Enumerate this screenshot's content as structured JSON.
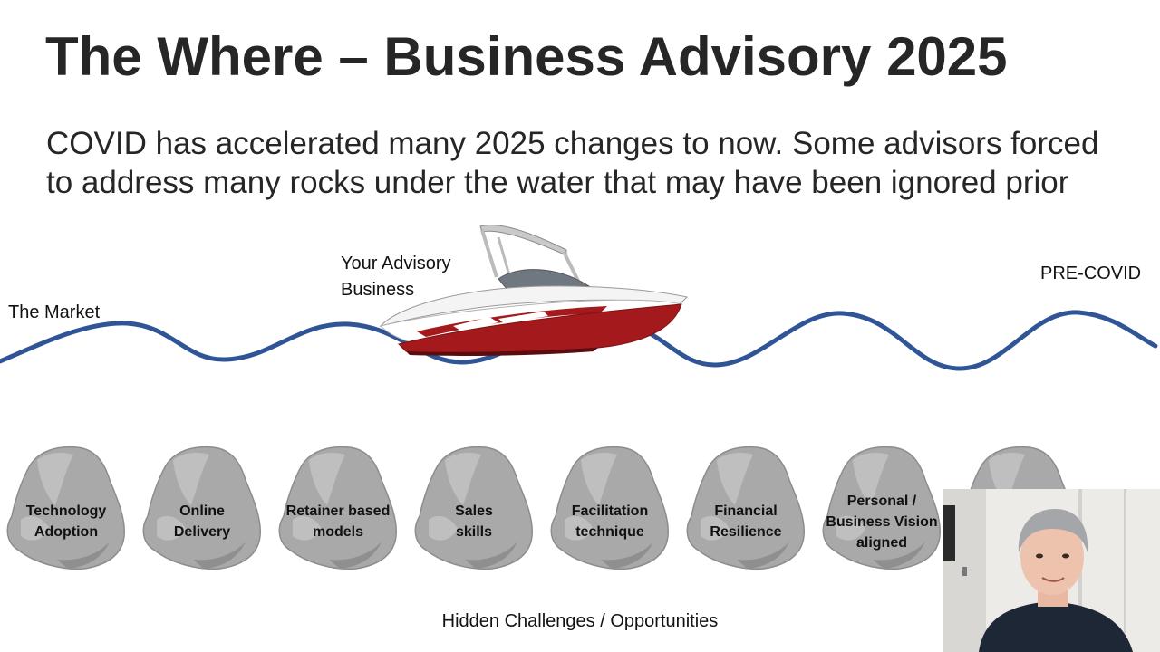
{
  "slide": {
    "title": "The Where – Business Advisory 2025",
    "subtitle_lines": [
      "COVID has accelerated many 2025 changes to now. Some advisors forced",
      "to address many rocks under the water that may have been ignored prior"
    ],
    "labels": {
      "market": "The Market",
      "business_line1": "Your Advisory",
      "business_line2": "Business",
      "precovid": "PRE-COVID"
    },
    "rocks": [
      {
        "lines": [
          "Technology",
          "Adoption"
        ]
      },
      {
        "lines": [
          "Online",
          "Delivery"
        ]
      },
      {
        "lines": [
          "Retainer based",
          "models"
        ]
      },
      {
        "lines": [
          "Sales",
          "skills"
        ]
      },
      {
        "lines": [
          "Facilitation",
          "technique"
        ]
      },
      {
        "lines": [
          "Financial",
          "Resilience"
        ]
      },
      {
        "lines": [
          "Personal /",
          "Business Vision",
          "aligned"
        ]
      },
      {
        "lines": []
      }
    ],
    "footer": "Hidden Challenges / Opportunities"
  },
  "colors": {
    "wave": "#2f5597",
    "title": "#262626",
    "boat_hull": "#a3191c",
    "rock": "#a9a9a9"
  },
  "icons": {
    "boat": "speedboat-image",
    "rock": "rock-image",
    "presenter": "presenter-video-thumbnail"
  }
}
